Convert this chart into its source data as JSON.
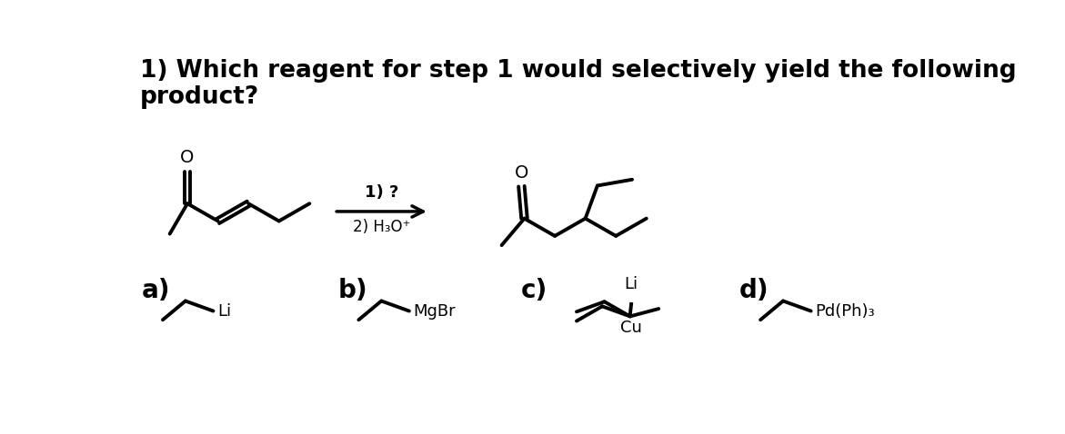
{
  "title_line1": "1) Which reagent for step 1 would selectively yield the following",
  "title_line2": "product?",
  "background_color": "#ffffff",
  "text_color": "#000000",
  "title_fontsize": 19,
  "label_fontsize": 20,
  "structure_linewidth": 2.8,
  "arrow_label_1": "1) ?",
  "arrow_label_2": "2) H₃O⁺",
  "answer_a_label": "Li",
  "answer_b_label": "MgBr",
  "answer_c_label1": "Li",
  "answer_c_label2": "Cu",
  "answer_d_label": "Pd(Ph)₃"
}
